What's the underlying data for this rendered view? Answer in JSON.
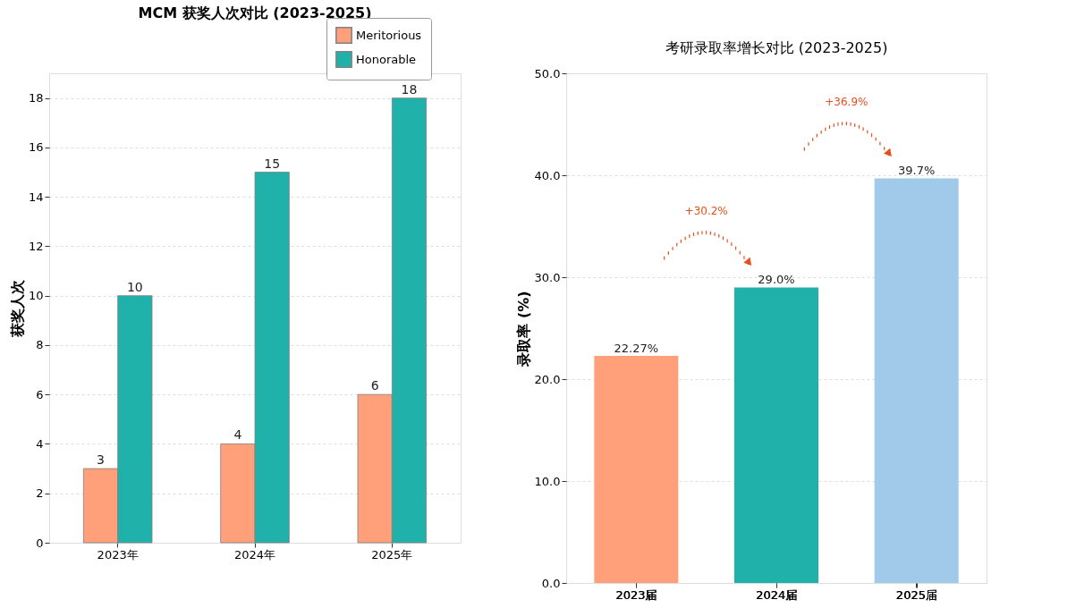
{
  "chart_data": [
    {
      "type": "bar",
      "title": "MCM 获奖人次对比 (2023-2025)",
      "ylabel": "获奖人次",
      "categories": [
        "2023年",
        "2024年",
        "2025年"
      ],
      "series": [
        {
          "name": "Meritorious",
          "color": "#ffa07a",
          "values": [
            3,
            4,
            6
          ]
        },
        {
          "name": "Honorable",
          "color": "#20b2aa",
          "values": [
            10,
            15,
            18
          ]
        }
      ],
      "ylim": [
        0,
        19
      ],
      "yticks": [
        0,
        2,
        4,
        6,
        8,
        10,
        12,
        14,
        16,
        18
      ],
      "grid": "y",
      "legend": "top right",
      "data_labels": true
    },
    {
      "type": "bar",
      "title": "考研录取率增长对比 (2023-2025)",
      "ylabel": "录取率 (%)",
      "categories": [
        "2023届",
        "2024届",
        "2025届"
      ],
      "values": [
        22.27,
        29.0,
        39.7
      ],
      "colors": [
        "#ffa07a",
        "#20b2aa",
        "#a1c9ea"
      ],
      "value_labels": [
        "22.27%",
        "29.0%",
        "39.7%"
      ],
      "ylim": [
        0,
        50
      ],
      "yticks": [
        {
          "value": 0,
          "label": "0.0"
        },
        {
          "value": 10,
          "label": "10.0"
        },
        {
          "value": 20,
          "label": "20.0"
        },
        {
          "value": 30,
          "label": "30.0"
        },
        {
          "value": 40,
          "label": "40.0"
        },
        {
          "value": 50,
          "label": "50.0"
        }
      ],
      "grid": "y",
      "annotations": [
        "+30.2%",
        "+36.9%"
      ]
    }
  ]
}
